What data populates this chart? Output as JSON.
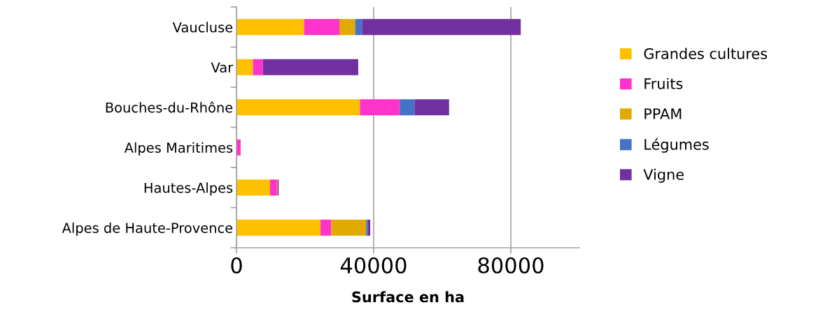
{
  "chart_data": {
    "type": "bar",
    "orientation": "horizontal",
    "stacked": true,
    "xlabel": "Surface en ha",
    "categories": [
      "Vaucluse",
      "Var",
      "Bouches-du-Rhône",
      "Alpes Maritimes",
      "Hautes-Alpes",
      "Alpes de Haute-Provence"
    ],
    "series": [
      {
        "name": "Grandes cultures",
        "color": "#ffc000",
        "values": [
          19700,
          4800,
          36000,
          0,
          9800,
          24500
        ]
      },
      {
        "name": "Fruits",
        "color": "#ff33cc",
        "values": [
          10300,
          2900,
          11600,
          1200,
          2000,
          3100
        ]
      },
      {
        "name": "PPAM",
        "color": "#e0aa00",
        "values": [
          4600,
          0,
          0,
          0,
          200,
          10200
        ]
      },
      {
        "name": "Légumes",
        "color": "#4472c4",
        "values": [
          2000,
          0,
          4300,
          0,
          0,
          500
        ]
      },
      {
        "name": "Vigne",
        "color": "#7030a0",
        "values": [
          46300,
          27800,
          10100,
          0,
          300,
          700
        ]
      }
    ],
    "xlim": [
      0,
      100000
    ],
    "xticks": [
      0,
      40000,
      80000
    ],
    "grid": "x",
    "legend": "right"
  }
}
